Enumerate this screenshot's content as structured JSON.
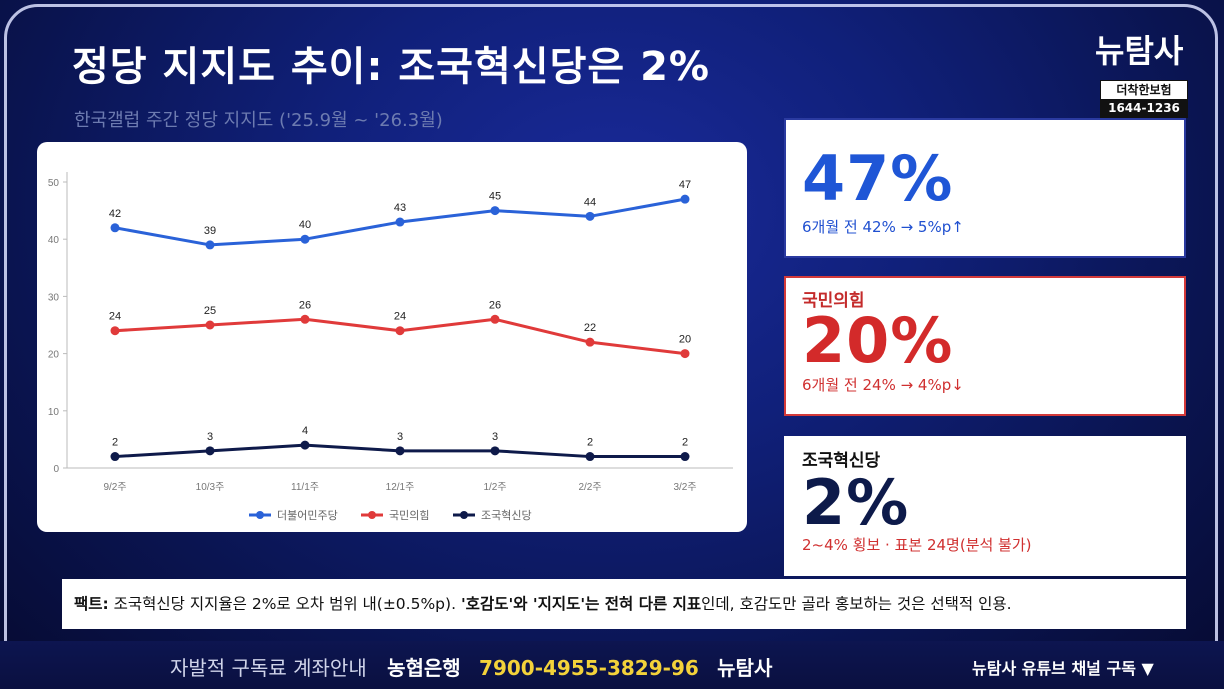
{
  "header": {
    "title": "정당 지지도 추이: 조국혁신당은 2%",
    "subtitle": "한국갤럽 주간 정당 지지도 ('25.9월 ~ '26.3월)",
    "brand": "뉴탐사"
  },
  "ad": {
    "line1": "더착한보험",
    "line2": "1644-1236"
  },
  "chart_data": {
    "type": "line",
    "categories": [
      "9/2주",
      "10/3주",
      "11/1주",
      "12/1주",
      "1/2주",
      "2/2주",
      "3/2주"
    ],
    "ylim": [
      0,
      50
    ],
    "yticks": [
      "0",
      "10",
      "20",
      "30",
      "40",
      "50"
    ],
    "grid": false,
    "legend": "bottom",
    "series": [
      {
        "name": "더불어민주당",
        "color": "#2a62d8",
        "values": [
          42,
          39,
          40,
          43,
          45,
          44,
          47
        ]
      },
      {
        "name": "국민의힘",
        "color": "#e03a3a",
        "values": [
          24,
          25,
          26,
          24,
          26,
          22,
          20
        ]
      },
      {
        "name": "조국혁신당",
        "color": "#0e1a4a",
        "values": [
          2,
          3,
          4,
          3,
          3,
          2,
          2
        ]
      }
    ]
  },
  "cards": [
    {
      "label": "",
      "value": "47%",
      "note": "6개월 전 42% → 5%p↑"
    },
    {
      "label": "국민의힘",
      "value": "20%",
      "note": "6개월 전 24% → 4%p↓"
    },
    {
      "label": "조국혁신당",
      "value": "2%",
      "note": "2~4% 횡보 · 표본 24명(분석 불가)"
    }
  ],
  "fact": {
    "label": "팩트:",
    "text1": " 조국혁신당 지지율은 2%로 오차 범위 내(±0.5%p). ",
    "highlight": "'호감도'와 '지지도'는 전혀 다른 지표",
    "text2": "인데, 호감도만 골라 홍보하는 것은 선택적 인용."
  },
  "ticker": {
    "t1": "자발적 구독료 계좌안내",
    "t2": "농협은행",
    "t3": "7900-4955-3829-96",
    "t4": "뉴탐사"
  },
  "youtube": "뉴탐사 유튜브 채널 구독 ▼"
}
